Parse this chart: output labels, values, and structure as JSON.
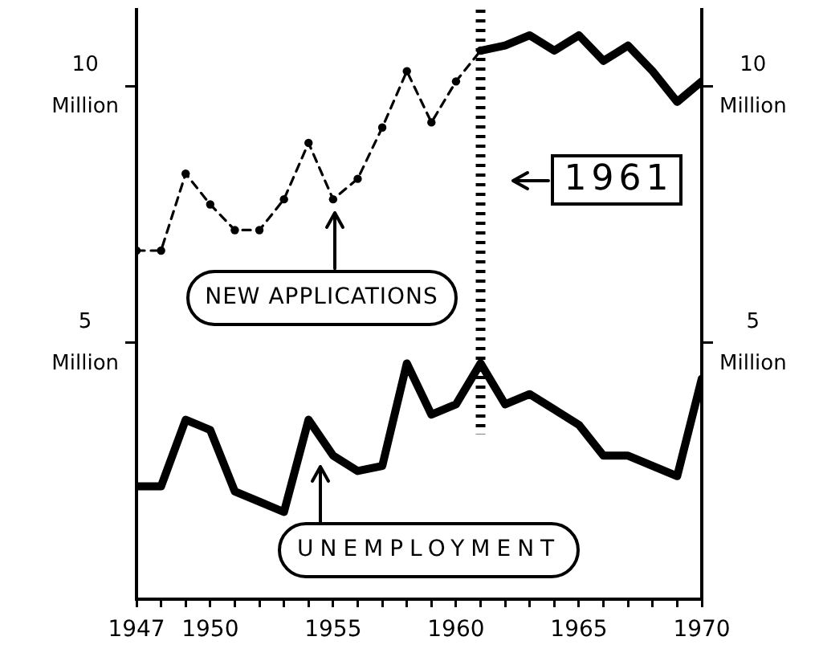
{
  "chart_data": {
    "type": "line",
    "xlim": [
      1947,
      1970
    ],
    "xticks": [
      1947,
      {
        "value": 1948,
        "label": null
      },
      {
        "value": 1949,
        "label": null
      },
      1950,
      {
        "value": 1951,
        "label": null
      },
      {
        "value": 1952,
        "label": null
      },
      {
        "value": 1953,
        "label": null
      },
      {
        "value": 1954,
        "label": null
      },
      1955,
      {
        "value": 1956,
        "label": null
      },
      {
        "value": 1957,
        "label": null
      },
      {
        "value": 1958,
        "label": null
      },
      {
        "value": 1959,
        "label": null
      },
      1960,
      {
        "value": 1961,
        "label": null
      },
      {
        "value": 1962,
        "label": null
      },
      {
        "value": 1963,
        "label": null
      },
      {
        "value": 1964,
        "label": null
      },
      1965,
      {
        "value": 1966,
        "label": null
      },
      {
        "value": 1967,
        "label": null
      },
      {
        "value": 1968,
        "label": null
      },
      {
        "value": 1969,
        "label": null
      },
      1970
    ],
    "ylim": [
      0,
      11.5
    ],
    "yticks": [
      {
        "value": 5,
        "label": "5 Million"
      },
      {
        "value": 10,
        "label": "10 Million"
      }
    ],
    "y2lim": [
      0,
      11.5
    ],
    "y2ticks": [
      {
        "value": 5,
        "label": "5 Million"
      },
      {
        "value": 10,
        "label": "10 Million"
      }
    ],
    "series": [
      {
        "color": "#000000",
        "line_style": "dashed",
        "marker": "circle",
        "x": [
          1947,
          1948,
          1949,
          1950,
          1951,
          1952,
          1953,
          1954,
          1955,
          1956,
          1957,
          1958,
          1959,
          1960,
          1961
        ],
        "values": [
          6.8,
          6.8,
          8.3,
          7.7,
          7.2,
          7.2,
          7.8,
          8.9,
          7.8,
          8.2,
          9.2,
          10.3,
          9.3,
          10.1,
          10.7
        ]
      },
      {
        "color": "#000000",
        "line_style": "solid",
        "marker": "none",
        "x": [
          1961,
          1962,
          1963,
          1964,
          1965,
          1966,
          1967,
          1968,
          1969,
          1970
        ],
        "values": [
          10.7,
          10.8,
          11.0,
          10.7,
          11.0,
          10.5,
          10.8,
          10.3,
          9.7,
          10.1
        ]
      },
      {
        "color": "#000000",
        "line_style": "solid",
        "marker": "none",
        "x": [
          1947,
          1948,
          1949,
          1950,
          1951,
          1952,
          1953,
          1954,
          1955,
          1956,
          1957,
          1958,
          1959,
          1960,
          1961,
          1962,
          1963,
          1964,
          1965,
          1966,
          1967,
          1968,
          1969,
          1970
        ],
        "values": [
          2.2,
          2.2,
          3.5,
          3.3,
          2.1,
          1.9,
          1.7,
          3.5,
          2.8,
          2.5,
          2.6,
          4.6,
          3.6,
          3.8,
          4.6,
          3.8,
          4.0,
          3.7,
          3.4,
          2.8,
          2.8,
          2.6,
          2.4,
          4.3
        ]
      }
    ],
    "ref_lines": [
      {
        "axis": "x",
        "value": 1961,
        "label": "1961",
        "line_style": "dotted",
        "color": "#000000"
      }
    ],
    "annotations": [
      "NEW APPLICATIONS",
      "UNEMPLOYMENT"
    ],
    "grid": false,
    "legend": false
  }
}
